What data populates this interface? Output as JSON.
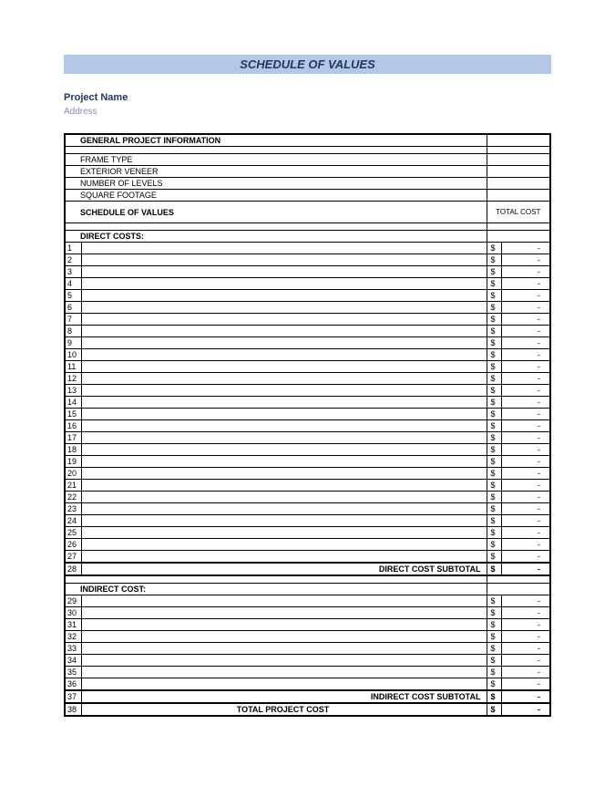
{
  "title": "SCHEDULE OF VALUES",
  "projectName": "Project Name",
  "address": "Address",
  "generalInfoHeader": "GENERAL PROJECT INFORMATION",
  "infoRows": [
    "FRAME TYPE",
    "EXTERIOR VENEER",
    "NUMBER OF LEVELS",
    "SQUARE FOOTAGE"
  ],
  "scheduleHeader": "SCHEDULE OF VALUES",
  "totalCostHeader": "TOTAL COST",
  "directCostsHeader": "DIRECT COSTS:",
  "directRows": [
    {
      "n": "1",
      "c": "$",
      "v": "-"
    },
    {
      "n": "2",
      "c": "$",
      "v": "-"
    },
    {
      "n": "3",
      "c": "$",
      "v": "-"
    },
    {
      "n": "4",
      "c": "$",
      "v": "-"
    },
    {
      "n": "5",
      "c": "$",
      "v": "-"
    },
    {
      "n": "6",
      "c": "$",
      "v": "-"
    },
    {
      "n": "7",
      "c": "$",
      "v": "-"
    },
    {
      "n": "8",
      "c": "$",
      "v": "-"
    },
    {
      "n": "9",
      "c": "$",
      "v": "-"
    },
    {
      "n": "10",
      "c": "$",
      "v": "-"
    },
    {
      "n": "11",
      "c": "$",
      "v": "-"
    },
    {
      "n": "12",
      "c": "$",
      "v": "-"
    },
    {
      "n": "13",
      "c": "$",
      "v": "-"
    },
    {
      "n": "14",
      "c": "$",
      "v": "-"
    },
    {
      "n": "15",
      "c": "$",
      "v": "-"
    },
    {
      "n": "16",
      "c": "$",
      "v": "-"
    },
    {
      "n": "17",
      "c": "$",
      "v": "-"
    },
    {
      "n": "18",
      "c": "$",
      "v": "-"
    },
    {
      "n": "19",
      "c": "$",
      "v": "-"
    },
    {
      "n": "20",
      "c": "$",
      "v": "-"
    },
    {
      "n": "21",
      "c": "$",
      "v": "-"
    },
    {
      "n": "22",
      "c": "$",
      "v": "-"
    },
    {
      "n": "23",
      "c": "$",
      "v": "-"
    },
    {
      "n": "24",
      "c": "$",
      "v": "-"
    },
    {
      "n": "25",
      "c": "$",
      "v": "-"
    },
    {
      "n": "26",
      "c": "$",
      "v": "-"
    },
    {
      "n": "27",
      "c": "$",
      "v": "-"
    }
  ],
  "directSubtotal": {
    "n": "28",
    "label": "DIRECT COST SUBTOTAL",
    "c": "$",
    "v": "-"
  },
  "indirectHeader": "INDIRECT COST:",
  "indirectRows": [
    {
      "n": "29",
      "c": "$",
      "v": "-"
    },
    {
      "n": "30",
      "c": "$",
      "v": "-"
    },
    {
      "n": "31",
      "c": "$",
      "v": "-"
    },
    {
      "n": "32",
      "c": "$",
      "v": "-"
    },
    {
      "n": "33",
      "c": "$",
      "v": "-"
    },
    {
      "n": "34",
      "c": "$",
      "v": "-"
    },
    {
      "n": "35",
      "c": "$",
      "v": "-"
    },
    {
      "n": "36",
      "c": "$",
      "v": "-"
    }
  ],
  "indirectSubtotal": {
    "n": "37",
    "label": "INDIRECT COST SUBTOTAL",
    "c": "$",
    "v": "-"
  },
  "totalProject": {
    "n": "38",
    "label": "TOTAL PROJECT COST",
    "c": "$",
    "v": "-"
  },
  "colors": {
    "titleBg": "#b4c7e7",
    "titleText": "#1f3864",
    "projectText": "#1f3864",
    "addressText": "#8a8ab5",
    "border": "#000000",
    "background": "#ffffff"
  }
}
